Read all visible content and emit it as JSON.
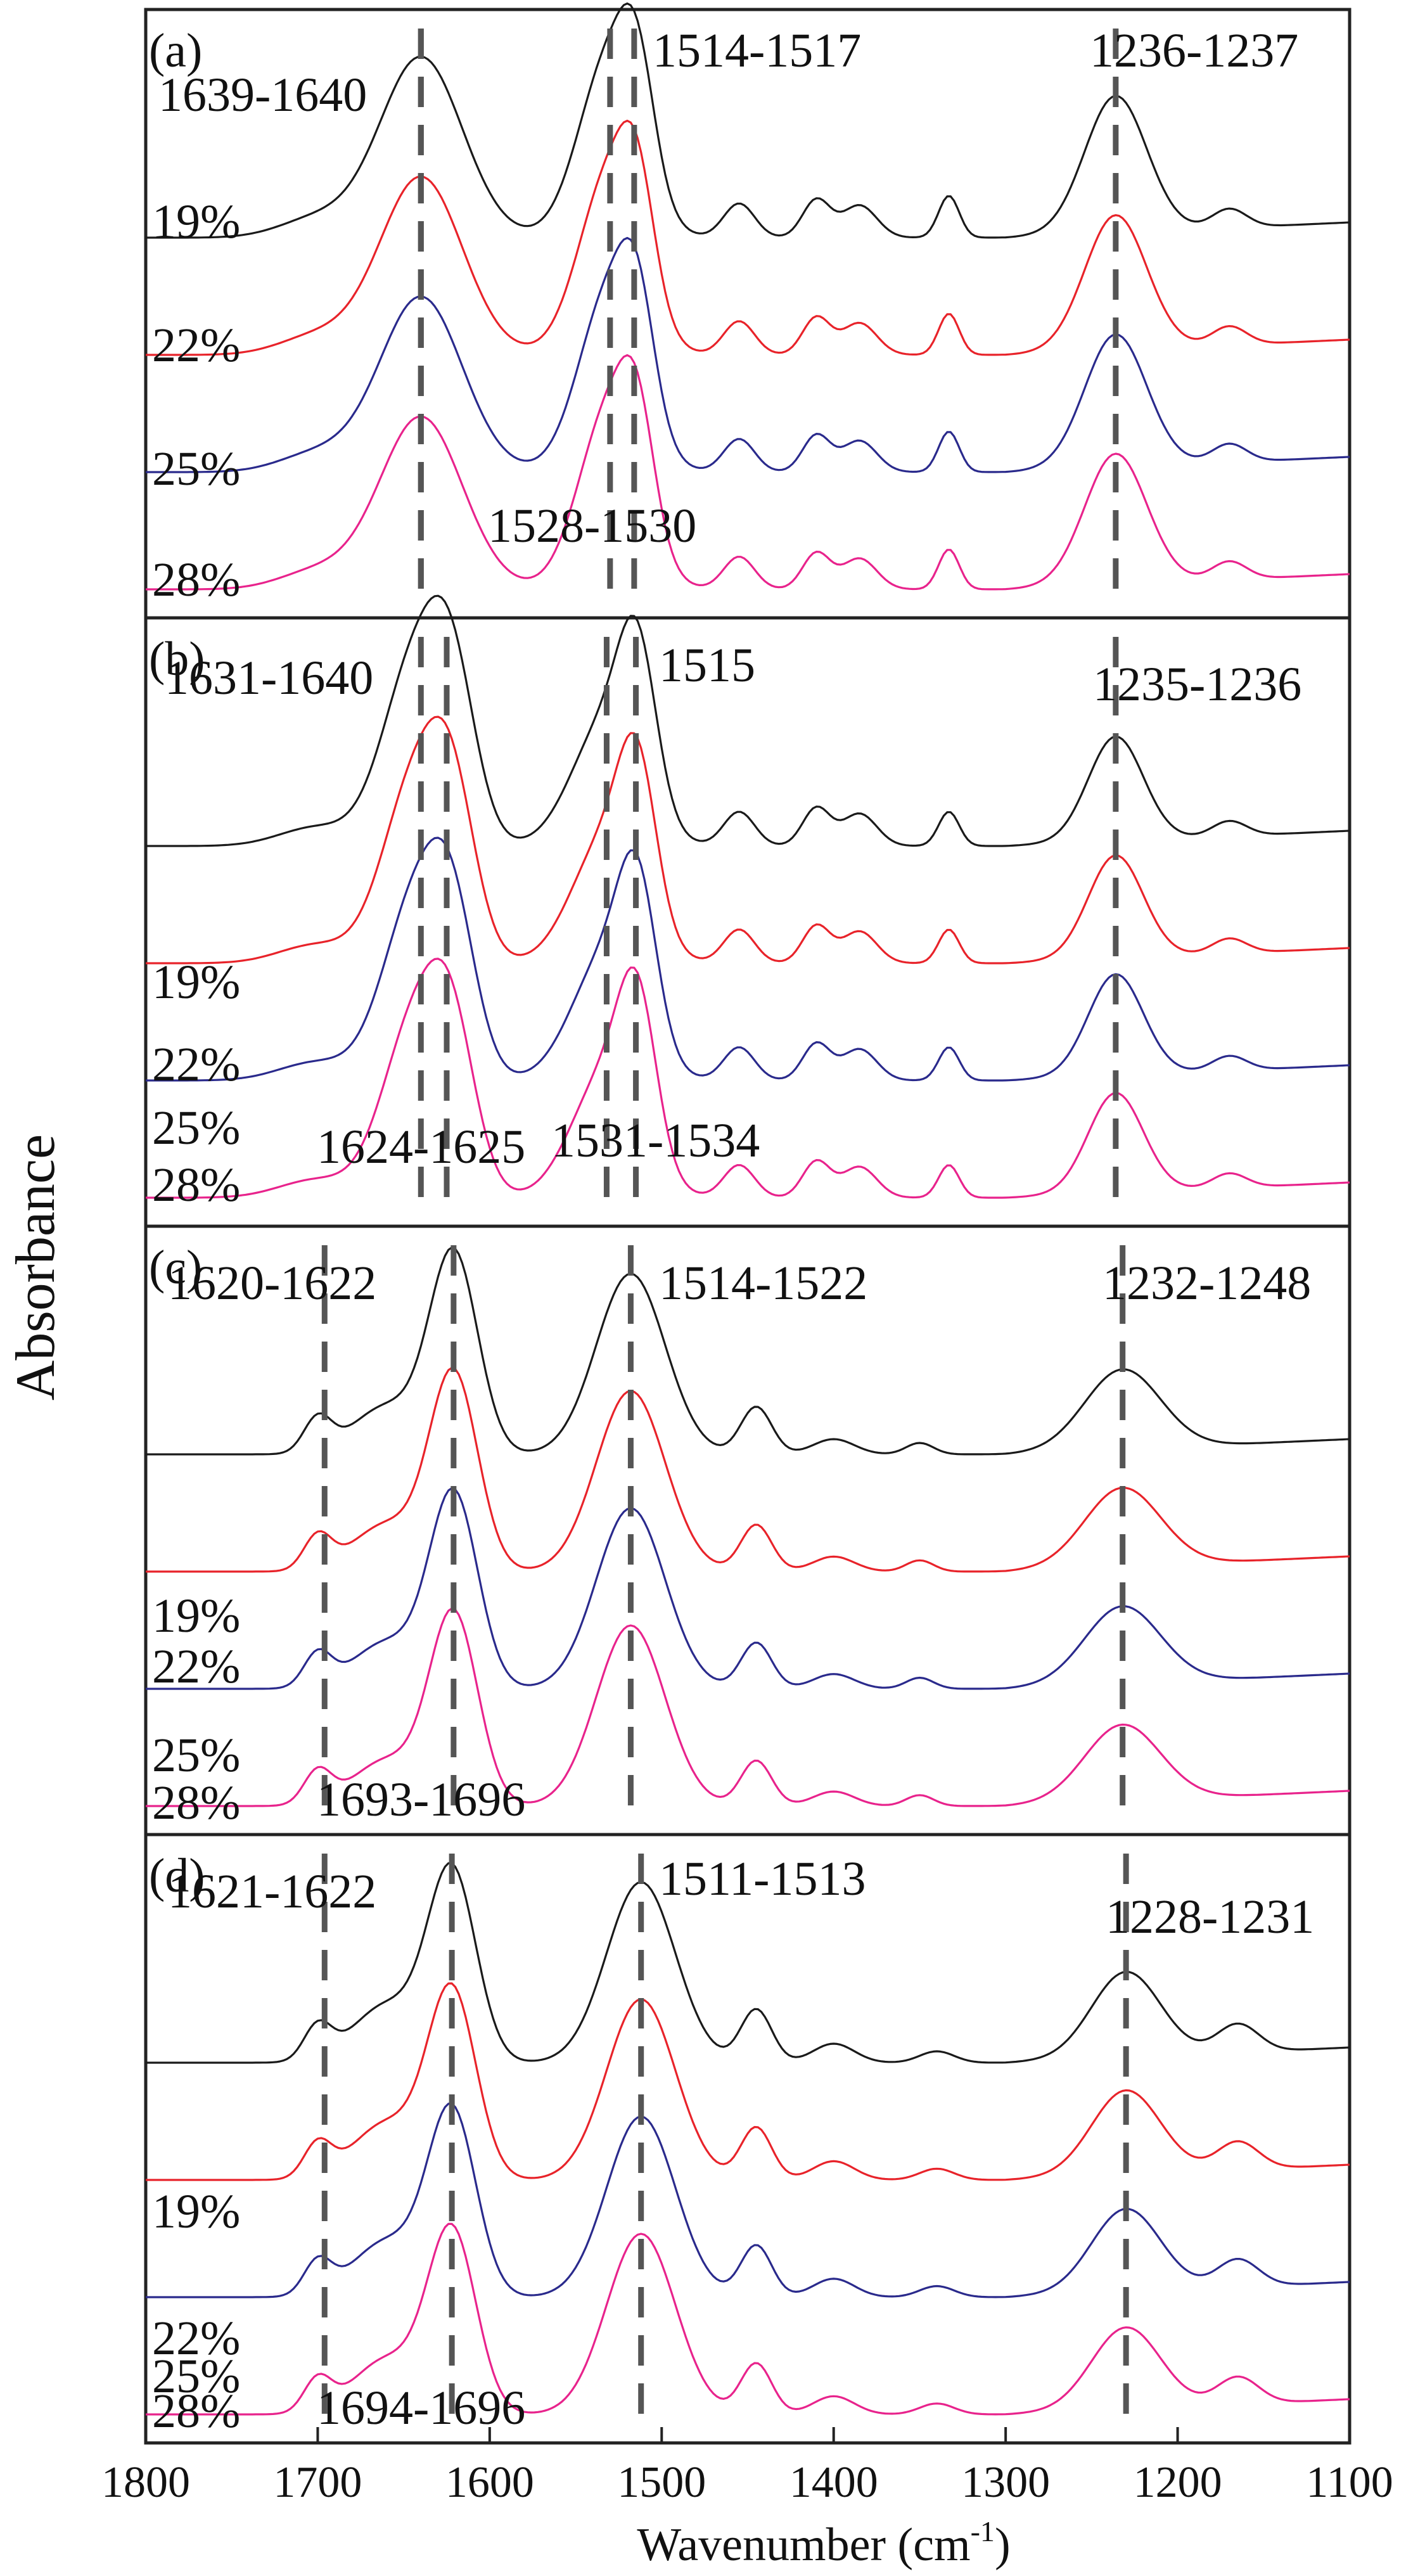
{
  "chart_data": {
    "type": "line",
    "title": "",
    "xlabel": "Wavenumber (cm",
    "xlabel_superscript": "-1",
    "xlabel_suffix": ")",
    "ylabel": "Absorbance",
    "xlim": [
      1800,
      1100
    ],
    "xticks": [
      "1800",
      "1700",
      "1600",
      "1500",
      "1400",
      "1300",
      "1200",
      "1100"
    ],
    "series_colors": {
      "19%": "#1a1a1a",
      "22%": "#e8232a",
      "25%": "#2a2a8c",
      "28%": "#e8238c"
    },
    "panels": [
      {
        "id": "(a)",
        "series_labels": [
          "19%",
          "22%",
          "25%",
          "28%"
        ],
        "peak_lines": [
          1640,
          1640,
          1530,
          1516,
          1236
        ],
        "annotations": [
          "1639-1640",
          "1514-1517",
          "1236-1237",
          "1528-1530"
        ],
        "peaks": [
          [
            1700,
            0.1,
            22
          ],
          [
            1640,
            0.95,
            24
          ],
          [
            1530,
            0.95,
            18
          ],
          [
            1514,
            0.5,
            10
          ],
          [
            1455,
            0.18,
            9
          ],
          [
            1410,
            0.2,
            8
          ],
          [
            1385,
            0.17,
            10
          ],
          [
            1333,
            0.22,
            6
          ],
          [
            1236,
            0.72,
            18
          ],
          [
            1170,
            0.1,
            10
          ]
        ]
      },
      {
        "id": "(b)",
        "series_labels": [
          "19%",
          "22%",
          "25%",
          "28%"
        ],
        "peak_lines": [
          1640,
          1625,
          1532,
          1515,
          1236
        ],
        "annotations": [
          "1631-1640",
          "1515",
          "1235-1236",
          "1624-1625",
          "1531-1534"
        ],
        "peaks": [
          [
            1700,
            0.1,
            22
          ],
          [
            1645,
            0.9,
            18
          ],
          [
            1622,
            0.8,
            14
          ],
          [
            1532,
            0.65,
            20
          ],
          [
            1514,
            0.75,
            11
          ],
          [
            1455,
            0.18,
            9
          ],
          [
            1410,
            0.2,
            8
          ],
          [
            1385,
            0.17,
            10
          ],
          [
            1333,
            0.18,
            6
          ],
          [
            1236,
            0.55,
            16
          ],
          [
            1170,
            0.08,
            10
          ]
        ]
      },
      {
        "id": "(c)",
        "series_labels": [
          "19%",
          "22%",
          "25%",
          "28%"
        ],
        "peak_lines": [
          1696,
          1621,
          1518,
          1232
        ],
        "annotations": [
          "1620-1622",
          "1514-1522",
          "1232-1248",
          "1693-1696"
        ],
        "peaks": [
          [
            1700,
            0.18,
            8
          ],
          [
            1660,
            0.25,
            20
          ],
          [
            1621,
            1.05,
            14
          ],
          [
            1518,
            0.95,
            20
          ],
          [
            1445,
            0.25,
            9
          ],
          [
            1400,
            0.08,
            12
          ],
          [
            1350,
            0.06,
            8
          ],
          [
            1232,
            0.42,
            22
          ]
        ]
      },
      {
        "id": "(d)",
        "series_labels": [
          "19%",
          "22%",
          "25%",
          "28%"
        ],
        "peak_lines": [
          1696,
          1622,
          1512,
          1230
        ],
        "annotations": [
          "1621-1622",
          "1511-1513",
          "1228-1231",
          "1694-1696"
        ],
        "peaks": [
          [
            1700,
            0.18,
            8
          ],
          [
            1660,
            0.3,
            20
          ],
          [
            1622,
            1.0,
            14
          ],
          [
            1512,
            0.95,
            20
          ],
          [
            1445,
            0.28,
            9
          ],
          [
            1400,
            0.1,
            12
          ],
          [
            1340,
            0.06,
            10
          ],
          [
            1230,
            0.45,
            20
          ],
          [
            1165,
            0.15,
            12
          ]
        ]
      }
    ]
  }
}
